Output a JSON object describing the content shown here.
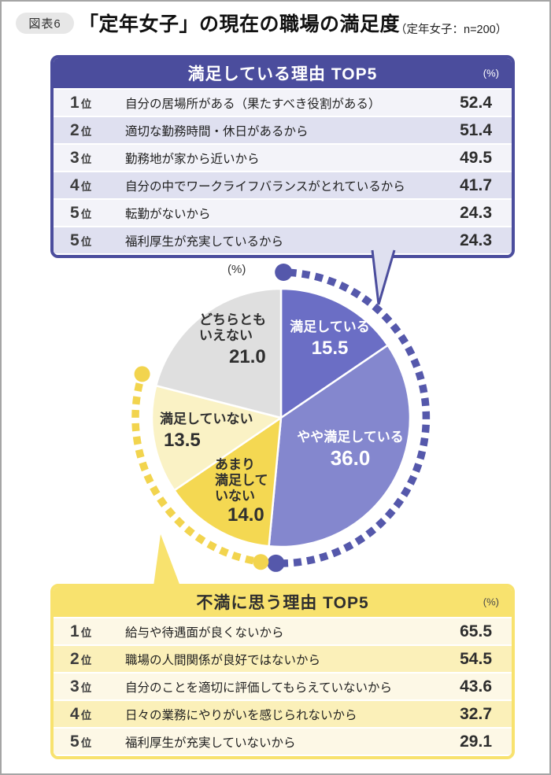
{
  "page": {
    "figure_label": "図表6",
    "title": "「定年女子」の現在の職場の満足度",
    "note": "（定年女子：n=200）"
  },
  "theme": {
    "satisfied_primary": "#4b4d9d",
    "satisfied_row_light": "#f3f3f9",
    "satisfied_row_alt": "#dfe0f0",
    "dissatisfied_primary": "#f8e26e",
    "dissatisfied_row_light": "#fdf8e6",
    "dissatisfied_row_alt": "#fbf0b9",
    "badge_bg": "#e7e7e7"
  },
  "satisfied_table": {
    "title": "満足している理由 TOP5",
    "unit": "(%)",
    "rank_suffix": "位",
    "rows": [
      {
        "rank": "1",
        "reason": "自分の居場所がある（果たすべき役割がある）",
        "value": "52.4"
      },
      {
        "rank": "2",
        "reason": "適切な勤務時間・休日があるから",
        "value": "51.4"
      },
      {
        "rank": "3",
        "reason": "勤務地が家から近いから",
        "value": "49.5"
      },
      {
        "rank": "4",
        "reason": "自分の中でワークライフバランスがとれているから",
        "value": "41.7"
      },
      {
        "rank": "5",
        "reason": "転勤がないから",
        "value": "24.3"
      },
      {
        "rank": "5",
        "reason": "福利厚生が充実しているから",
        "value": "24.3"
      }
    ]
  },
  "dissatisfied_table": {
    "title": "不満に思う理由 TOP5",
    "unit": "(%)",
    "rank_suffix": "位",
    "rows": [
      {
        "rank": "1",
        "reason": "給与や待遇面が良くないから",
        "value": "65.5"
      },
      {
        "rank": "2",
        "reason": "職場の人間関係が良好ではないから",
        "value": "54.5"
      },
      {
        "rank": "3",
        "reason": "自分のことを適切に評価してもらえていないから",
        "value": "43.6"
      },
      {
        "rank": "4",
        "reason": "日々の業務にやりがいを感じられないから",
        "value": "32.7"
      },
      {
        "rank": "5",
        "reason": "福利厚生が充実していないから",
        "value": "29.1"
      }
    ]
  },
  "chart_data": {
    "type": "pie",
    "unit_label": "(%)",
    "start_angle_deg": 0,
    "direction": "clockwise",
    "segments": [
      {
        "label": "満足している",
        "value": 15.5,
        "display": "15.5",
        "color": "#6b6ec5",
        "text_color": "#ffffff"
      },
      {
        "label": "やや満足している",
        "value": 36.0,
        "display": "36.0",
        "color": "#8487ce",
        "text_color": "#ffffff"
      },
      {
        "label": "あまり\n満足して\nいない",
        "value": 14.0,
        "display": "14.0",
        "color": "#f4d852",
        "text_color": "#2f2f2f"
      },
      {
        "label": "満足していない",
        "value": 13.5,
        "display": "13.5",
        "color": "#faf2c5",
        "text_color": "#2f2f2f"
      },
      {
        "label": "どちらとも\nいえない",
        "value": 21.0,
        "display": "21.0",
        "color": "#dfdfdf",
        "text_color": "#2f2f2f"
      }
    ],
    "highlight_arcs": [
      {
        "group": "satisfied",
        "color": "#5558ab",
        "from_pct": 0,
        "to_pct": 51.5
      },
      {
        "group": "dissatisfied",
        "color": "#f2d44e",
        "from_pct": 51.5,
        "to_pct": 79.0
      }
    ]
  }
}
